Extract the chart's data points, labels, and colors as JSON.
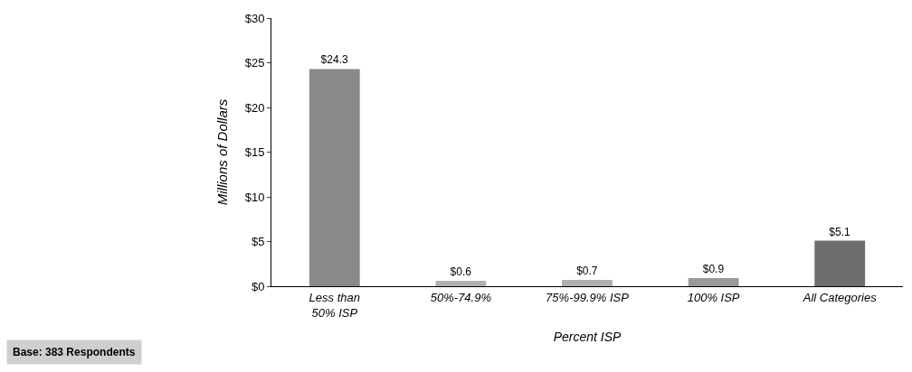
{
  "chart_data": {
    "type": "bar",
    "xlabel": "Percent ISP",
    "ylabel": "Millions of Dollars",
    "categories": [
      "Less than\n50% ISP",
      "50%-74.9%",
      "75%-99.9% ISP",
      "100% ISP",
      "All Categories"
    ],
    "values": [
      24.3,
      0.6,
      0.7,
      0.9,
      5.1
    ],
    "value_labels": [
      "$24.3",
      "$0.6",
      "$0.7",
      "$0.9",
      "$5.1"
    ],
    "colors": [
      "#8a8a8a",
      "#b0b0b0",
      "#b0b0b0",
      "#9a9a9a",
      "#6e6e6e"
    ],
    "ylim": [
      0,
      30
    ],
    "yticks": [
      {
        "value": 0,
        "label": "$0"
      },
      {
        "value": 5,
        "label": "$5"
      },
      {
        "value": 10,
        "label": "$10"
      },
      {
        "value": 15,
        "label": "$15"
      },
      {
        "value": 20,
        "label": "$20"
      },
      {
        "value": 25,
        "label": "$25"
      },
      {
        "value": 30,
        "label": "$30"
      }
    ],
    "annotations": [
      "Base: 383 Respondents"
    ],
    "legend": false
  }
}
